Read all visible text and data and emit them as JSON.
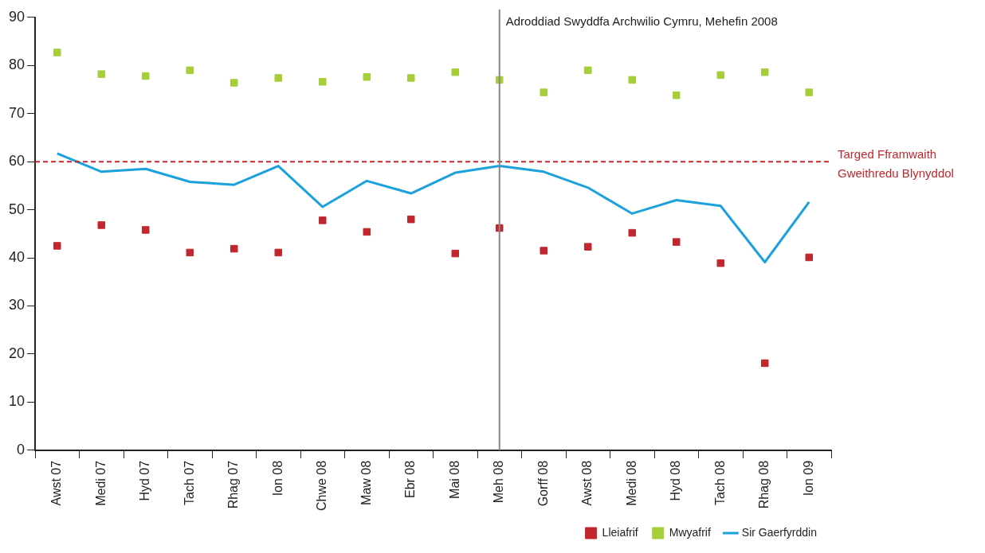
{
  "chart_data": {
    "type": "line",
    "categories": [
      "Awst 07",
      "Medi 07",
      "Hyd 07",
      "Tach 07",
      "Rhag 07",
      "Ion 08",
      "Chwe 08",
      "Maw 08",
      "Ebr 08",
      "Mai 08",
      "Meh 08",
      "Gorff 08",
      "Awst 08",
      "Medi 08",
      "Hyd 08",
      "Tach 08",
      "Rhag 08",
      "Ion 09"
    ],
    "series": [
      {
        "name": "Lleiafrif",
        "type": "scatter",
        "marker": "square",
        "color": "#c1272d",
        "values": [
          42.5,
          46.8,
          45.8,
          41.1,
          41.9,
          41.1,
          47.8,
          45.4,
          48,
          40.9,
          46.2,
          41.5,
          42.3,
          45.2,
          43.3,
          38.9,
          18.1,
          40.1
        ]
      },
      {
        "name": "Mwyafrif",
        "type": "scatter",
        "marker": "square",
        "color": "#a6ce39",
        "values": [
          82.7,
          78.2,
          77.8,
          79,
          76.4,
          77.4,
          76.6,
          77.6,
          77.4,
          78.6,
          77,
          74.4,
          79,
          77,
          73.8,
          78,
          78.6,
          74.4
        ]
      },
      {
        "name": "Sir Gaerfyrddin",
        "type": "line",
        "marker": "none",
        "color": "#1ba1dc",
        "values": [
          61.7,
          57.9,
          58.5,
          55.8,
          55.2,
          59.1,
          50.6,
          56,
          53.4,
          57.7,
          59.1,
          57.9,
          54.6,
          49.2,
          52,
          50.8,
          39.1,
          51.6
        ]
      }
    ],
    "ylim": [
      0,
      90
    ],
    "yticks": [
      0,
      10,
      20,
      30,
      40,
      50,
      60,
      70,
      80,
      90
    ],
    "grid": false,
    "legend": "bottom right",
    "ref_lines": [
      {
        "axis": "y",
        "value": 60,
        "label": "Targed Fframwaith\nGweithredu Blynyddol",
        "color": "#c1272d",
        "line_style": "dashed"
      },
      {
        "axis": "x",
        "value": "Meh 08",
        "label": "Adroddiad Swyddfa Archwilio Cymru, Mehefin 2008",
        "color": "#888888",
        "line_style": "solid"
      }
    ]
  }
}
